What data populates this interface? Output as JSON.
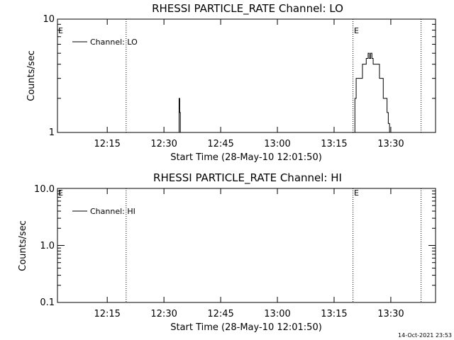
{
  "footer": {
    "timestamp": "14-Oct-2021 23:53"
  },
  "chart_data": [
    {
      "type": "line",
      "title": "RHESSI PARTICLE_RATE Channel: LO",
      "xlabel": "Start Time (28-May-10 12:01:50)",
      "ylabel": "Counts/sec",
      "yscale": "log",
      "ylim": [
        1,
        10
      ],
      "xlim": [
        "12:01:50",
        "13:41:50"
      ],
      "x_ticks": [
        "12:15",
        "12:30",
        "12:45",
        "13:00",
        "13:15",
        "13:30"
      ],
      "y_ticks": [
        "1",
        "10"
      ],
      "legend": {
        "label": "Channel: LO",
        "placement": "top-left"
      },
      "event_markers": [
        {
          "time": "12:20:00",
          "label": ""
        },
        {
          "time": "13:20:00",
          "label": "E"
        },
        {
          "time": "13:38:00",
          "label": ""
        }
      ],
      "axis_start_marker": "E",
      "series": [
        {
          "name": "Channel: LO",
          "x": [
            "12:33:40",
            "12:34:00",
            "12:34:10",
            "12:34:20",
            "13:20:10",
            "13:20:30",
            "13:20:50",
            "13:21:00",
            "13:21:30",
            "13:22:00",
            "13:22:30",
            "13:23:00",
            "13:23:30",
            "13:24:00",
            "13:24:20",
            "13:24:40",
            "13:25:00",
            "13:25:20",
            "13:25:40",
            "13:26:00",
            "13:26:30",
            "13:27:00",
            "13:27:30",
            "13:28:00",
            "13:28:30",
            "13:29:00",
            "13:29:20",
            "13:29:40",
            "13:30:00"
          ],
          "values": [
            1,
            2,
            1.5,
            1,
            1,
            2,
            3,
            3,
            3,
            3,
            4,
            4,
            4.5,
            5,
            4.5,
            5,
            4.5,
            4,
            4,
            4,
            4,
            3,
            3,
            2,
            2,
            1.5,
            1.2,
            1,
            1
          ]
        }
      ]
    },
    {
      "type": "line",
      "title": "RHESSI PARTICLE_RATE Channel: HI",
      "xlabel": "Start Time (28-May-10 12:01:50)",
      "ylabel": "Counts/sec",
      "yscale": "log",
      "ylim": [
        0.1,
        10
      ],
      "xlim": [
        "12:01:50",
        "13:41:50"
      ],
      "x_ticks": [
        "12:15",
        "12:30",
        "12:45",
        "13:00",
        "13:15",
        "13:30"
      ],
      "y_ticks": [
        "10.0",
        "1.0",
        "0.1"
      ],
      "legend": {
        "label": "Channel: HI",
        "placement": "top-left"
      },
      "event_markers": [
        {
          "time": "12:20:00",
          "label": ""
        },
        {
          "time": "13:20:00",
          "label": "E"
        },
        {
          "time": "13:38:00",
          "label": ""
        }
      ],
      "axis_start_marker": "E",
      "series": [
        {
          "name": "Channel: HI",
          "x": [],
          "values": []
        }
      ]
    }
  ]
}
